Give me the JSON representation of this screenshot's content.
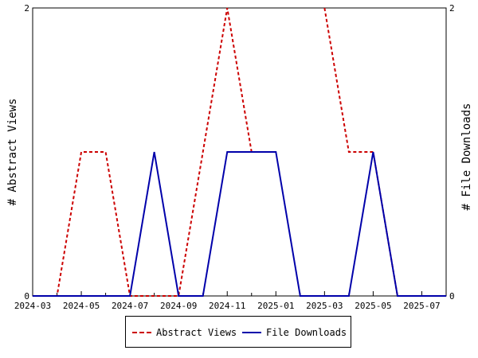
{
  "chart_data": {
    "type": "line",
    "xlabel": "",
    "ylabel_left": "# Abstract Views",
    "ylabel_right": "# File Downloads",
    "x": [
      "2024-03",
      "2024-04",
      "2024-05",
      "2024-06",
      "2024-07",
      "2024-08",
      "2024-09",
      "2024-10",
      "2024-11",
      "2024-12",
      "2025-01",
      "2025-02",
      "2025-03",
      "2025-04",
      "2025-05",
      "2025-06",
      "2025-07",
      "2025-08"
    ],
    "x_tick_labels": [
      "2024-03",
      "2024-05",
      "2024-07",
      "2024-09",
      "2024-11",
      "2025-01",
      "2025-03",
      "2025-05",
      "2025-07"
    ],
    "y_ticks": [
      0,
      2
    ],
    "ylim": [
      0,
      2
    ],
    "grid": false,
    "legend": "bottom",
    "series": [
      {
        "name": "Abstract Views",
        "axis": "left",
        "style": "dashed",
        "color": "#cc0000",
        "values": [
          0,
          0,
          1,
          1,
          0,
          0,
          0,
          1,
          2,
          1,
          null,
          null,
          2,
          1,
          1,
          0,
          0,
          0
        ]
      },
      {
        "name": "File Downloads",
        "axis": "right",
        "style": "solid",
        "color": "#0000aa",
        "values": [
          0,
          0,
          0,
          0,
          0,
          1,
          0,
          0,
          1,
          1,
          1,
          0,
          0,
          0,
          1,
          0,
          0,
          0
        ]
      }
    ]
  }
}
